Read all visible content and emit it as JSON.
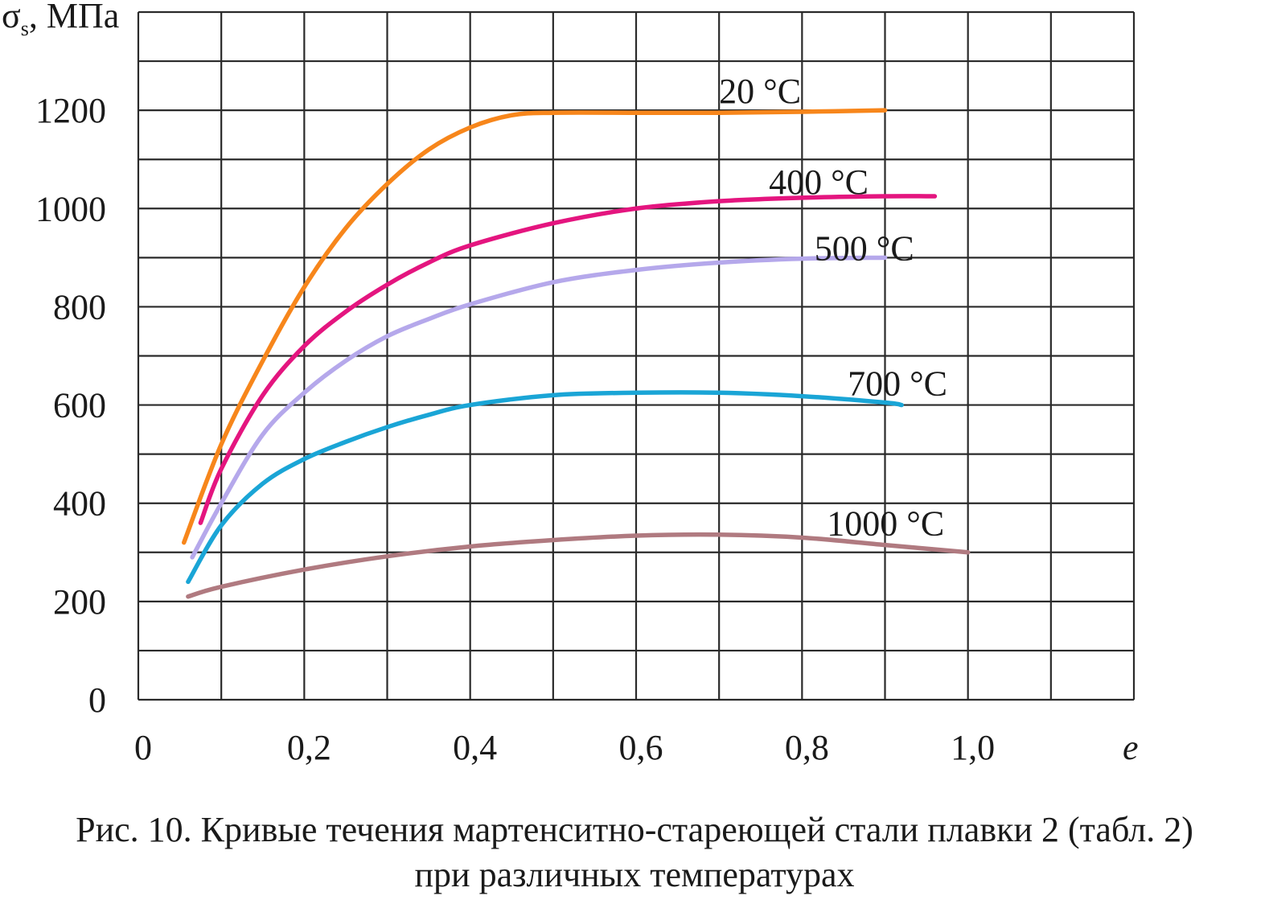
{
  "chart_data": {
    "type": "line",
    "xlabel": "e",
    "ylabel": "σs, МПа",
    "ylabel_main": "σ",
    "ylabel_sub": "s",
    "ylabel_unit": ", МПа",
    "xlim": [
      0,
      1.2
    ],
    "ylim": [
      0,
      1400
    ],
    "x_ticks": [
      0,
      0.2,
      0.4,
      0.6,
      0.8,
      1.0
    ],
    "x_tick_labels": [
      "0",
      "0,2",
      "0,4",
      "0,6",
      "0,8",
      "1,0"
    ],
    "y_ticks": [
      0,
      200,
      400,
      600,
      800,
      1000,
      1200
    ],
    "y_tick_labels": [
      "0",
      "200",
      "400",
      "600",
      "800",
      "1000",
      "1200"
    ],
    "grid": true,
    "grid_x_step": 0.1,
    "grid_y_step": 100,
    "series": [
      {
        "name": "20 °C",
        "color": "#f7861b",
        "x": [
          0.055,
          0.1,
          0.15,
          0.2,
          0.25,
          0.3,
          0.35,
          0.4,
          0.45,
          0.5,
          0.6,
          0.7,
          0.8,
          0.9
        ],
        "y": [
          320,
          520,
          690,
          840,
          960,
          1050,
          1120,
          1165,
          1190,
          1195,
          1195,
          1195,
          1197,
          1200
        ]
      },
      {
        "name": "400 °C",
        "color": "#e4157f",
        "x": [
          0.075,
          0.1,
          0.15,
          0.2,
          0.25,
          0.3,
          0.35,
          0.4,
          0.5,
          0.6,
          0.7,
          0.8,
          0.9,
          0.96
        ],
        "y": [
          360,
          470,
          620,
          720,
          790,
          845,
          890,
          925,
          970,
          1000,
          1015,
          1022,
          1025,
          1025
        ]
      },
      {
        "name": "500 °C",
        "color": "#b5a8eb",
        "x": [
          0.065,
          0.1,
          0.15,
          0.2,
          0.25,
          0.3,
          0.35,
          0.4,
          0.5,
          0.6,
          0.7,
          0.8,
          0.9
        ],
        "y": [
          290,
          400,
          540,
          625,
          690,
          740,
          775,
          805,
          850,
          875,
          890,
          898,
          900
        ]
      },
      {
        "name": "700 °C",
        "color": "#1aa5d6",
        "x": [
          0.06,
          0.1,
          0.15,
          0.2,
          0.25,
          0.3,
          0.35,
          0.4,
          0.5,
          0.6,
          0.7,
          0.8,
          0.9,
          0.92
        ],
        "y": [
          240,
          355,
          440,
          490,
          525,
          555,
          580,
          600,
          620,
          625,
          625,
          618,
          605,
          600
        ]
      },
      {
        "name": "1000 °C",
        "color": "#b07a80",
        "x": [
          0.06,
          0.1,
          0.2,
          0.3,
          0.4,
          0.5,
          0.6,
          0.7,
          0.8,
          0.9,
          1.0
        ],
        "y": [
          210,
          230,
          265,
          292,
          312,
          325,
          334,
          336,
          330,
          315,
          300
        ]
      }
    ]
  },
  "caption": {
    "line1": "Рис. 10. Кривые течения мартенситно-стареющей стали плавки 2 (табл. 2)",
    "line2": "при различных температурах"
  }
}
